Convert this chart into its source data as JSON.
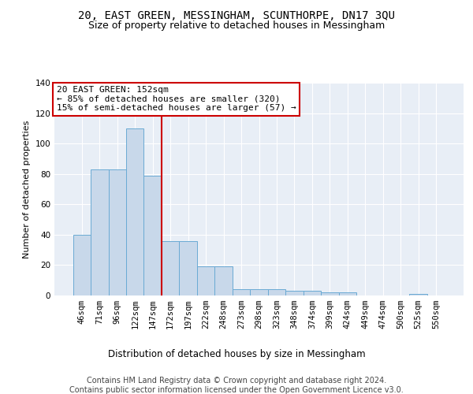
{
  "title1": "20, EAST GREEN, MESSINGHAM, SCUNTHORPE, DN17 3QU",
  "title2": "Size of property relative to detached houses in Messingham",
  "xlabel": "Distribution of detached houses by size in Messingham",
  "ylabel": "Number of detached properties",
  "bar_color": "#c8d8ea",
  "bar_edge_color": "#6aaad4",
  "background_color": "#e8eef6",
  "grid_color": "#ffffff",
  "categories": [
    "46sqm",
    "71sqm",
    "96sqm",
    "122sqm",
    "147sqm",
    "172sqm",
    "197sqm",
    "222sqm",
    "248sqm",
    "273sqm",
    "298sqm",
    "323sqm",
    "348sqm",
    "374sqm",
    "399sqm",
    "424sqm",
    "449sqm",
    "474sqm",
    "500sqm",
    "525sqm",
    "550sqm"
  ],
  "values": [
    40,
    83,
    83,
    110,
    79,
    36,
    36,
    19,
    19,
    4,
    4,
    4,
    3,
    3,
    2,
    2,
    0,
    0,
    0,
    1,
    0
  ],
  "ylim": [
    0,
    140
  ],
  "yticks": [
    0,
    20,
    40,
    60,
    80,
    100,
    120,
    140
  ],
  "property_line_x": 4.5,
  "annotation_text": "20 EAST GREEN: 152sqm\n← 85% of detached houses are smaller (320)\n15% of semi-detached houses are larger (57) →",
  "annotation_box_color": "#ffffff",
  "annotation_box_edge": "#cc0000",
  "red_line_color": "#cc0000",
  "footer_text": "Contains HM Land Registry data © Crown copyright and database right 2024.\nContains public sector information licensed under the Open Government Licence v3.0.",
  "title1_fontsize": 10,
  "title2_fontsize": 9,
  "annotation_fontsize": 8,
  "footer_fontsize": 7,
  "tick_fontsize": 7.5,
  "ylabel_fontsize": 8,
  "xlabel_fontsize": 8.5
}
